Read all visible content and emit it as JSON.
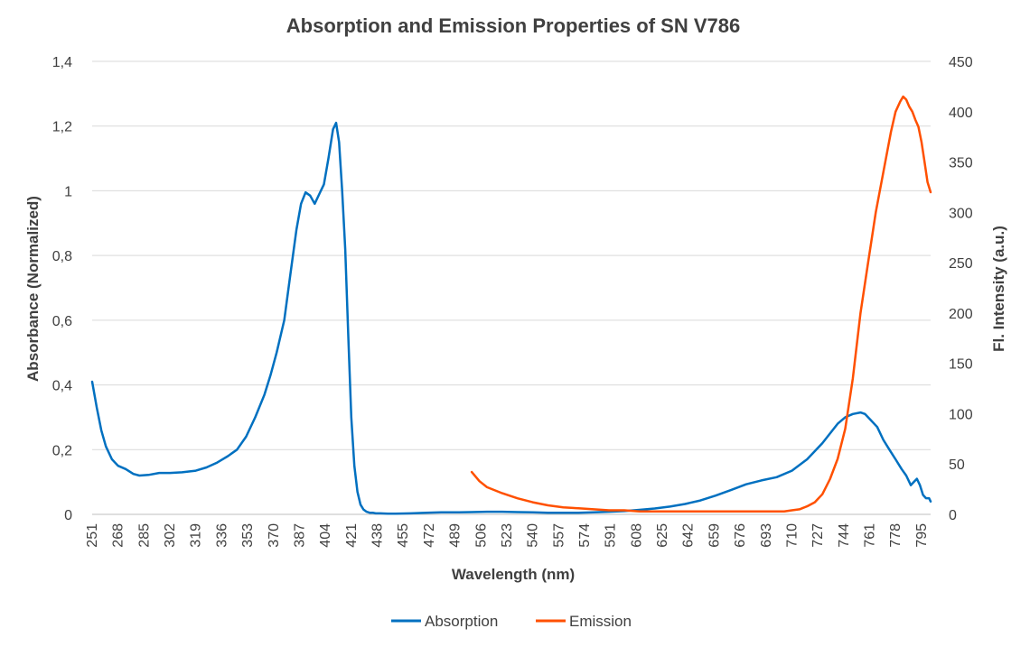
{
  "chart_data": {
    "type": "line",
    "title": "Absorption and Emission Properties of SN V786",
    "xlabel": "Wavelength (nm)",
    "ylabel": "Absorbance (Normalized)",
    "y2label": "Fl. Intensity (a.u.)",
    "xlim": [
      251,
      801
    ],
    "ylim": [
      0,
      1.4
    ],
    "y2lim": [
      0,
      450
    ],
    "grid": true,
    "legend_position": "bottom",
    "x_ticks": [
      "251",
      "268",
      "285",
      "302",
      "319",
      "336",
      "353",
      "370",
      "387",
      "404",
      "421",
      "438",
      "455",
      "472",
      "489",
      "506",
      "523",
      "540",
      "557",
      "574",
      "591",
      "608",
      "625",
      "642",
      "659",
      "676",
      "693",
      "710",
      "727",
      "744",
      "761",
      "778",
      "795"
    ],
    "y_ticks": [
      "0",
      "0,2",
      "0,4",
      "0,6",
      "0,8",
      "1",
      "1,2",
      "1,4"
    ],
    "y2_ticks": [
      "0",
      "50",
      "100",
      "150",
      "200",
      "250",
      "300",
      "350",
      "400",
      "450"
    ],
    "series": [
      {
        "name": "Absorption",
        "axis": "left",
        "color": "#0070c0",
        "x": [
          251,
          254,
          257,
          260,
          264,
          268,
          273,
          278,
          282,
          288,
          295,
          302,
          310,
          319,
          326,
          333,
          340,
          346,
          352,
          358,
          364,
          368,
          372,
          377,
          381,
          385,
          388,
          391,
          394,
          397,
          400,
          403,
          406,
          409,
          411,
          413,
          415,
          417,
          419,
          421,
          423,
          425,
          427,
          429,
          431,
          433,
          435,
          437,
          440,
          445,
          450,
          460,
          470,
          480,
          490,
          500,
          510,
          520,
          530,
          540,
          550,
          560,
          570,
          580,
          590,
          600,
          610,
          620,
          630,
          640,
          650,
          660,
          670,
          680,
          690,
          700,
          710,
          720,
          730,
          740,
          745,
          750,
          755,
          758,
          762,
          766,
          770,
          774,
          778,
          782,
          785,
          788,
          790,
          792,
          794,
          796,
          798,
          800,
          801
        ],
        "values": [
          0.41,
          0.33,
          0.26,
          0.21,
          0.17,
          0.15,
          0.14,
          0.125,
          0.12,
          0.122,
          0.128,
          0.128,
          0.13,
          0.135,
          0.145,
          0.16,
          0.18,
          0.2,
          0.24,
          0.3,
          0.37,
          0.43,
          0.5,
          0.6,
          0.74,
          0.88,
          0.96,
          0.995,
          0.985,
          0.96,
          0.99,
          1.02,
          1.1,
          1.19,
          1.21,
          1.15,
          1.0,
          0.82,
          0.55,
          0.3,
          0.15,
          0.07,
          0.03,
          0.015,
          0.008,
          0.005,
          0.005,
          0.003,
          0.003,
          0.002,
          0.002,
          0.003,
          0.005,
          0.006,
          0.006,
          0.007,
          0.008,
          0.008,
          0.007,
          0.006,
          0.005,
          0.005,
          0.005,
          0.006,
          0.008,
          0.01,
          0.014,
          0.018,
          0.024,
          0.032,
          0.043,
          0.058,
          0.075,
          0.093,
          0.105,
          0.115,
          0.135,
          0.17,
          0.22,
          0.28,
          0.3,
          0.31,
          0.315,
          0.31,
          0.29,
          0.27,
          0.23,
          0.2,
          0.17,
          0.14,
          0.12,
          0.09,
          0.1,
          0.11,
          0.09,
          0.06,
          0.05,
          0.05,
          0.04
        ]
      },
      {
        "name": "Emission",
        "axis": "right",
        "color": "#ff5000",
        "x": [
          500,
          505,
          510,
          520,
          530,
          540,
          550,
          560,
          570,
          580,
          590,
          600,
          610,
          620,
          630,
          640,
          650,
          660,
          670,
          680,
          690,
          700,
          705,
          710,
          715,
          720,
          725,
          730,
          735,
          740,
          745,
          750,
          755,
          760,
          765,
          770,
          775,
          778,
          781,
          783,
          785,
          787,
          789,
          791,
          793,
          795,
          797,
          799,
          801
        ],
        "values": [
          42,
          33,
          27,
          21,
          16,
          12,
          9,
          7,
          6,
          5,
          4,
          4,
          3,
          3,
          3,
          3,
          3,
          3,
          3,
          3,
          3,
          3,
          3,
          4,
          5,
          8,
          12,
          20,
          35,
          55,
          85,
          135,
          200,
          250,
          300,
          340,
          380,
          400,
          410,
          415,
          412,
          405,
          400,
          392,
          385,
          370,
          350,
          330,
          320
        ]
      }
    ]
  }
}
